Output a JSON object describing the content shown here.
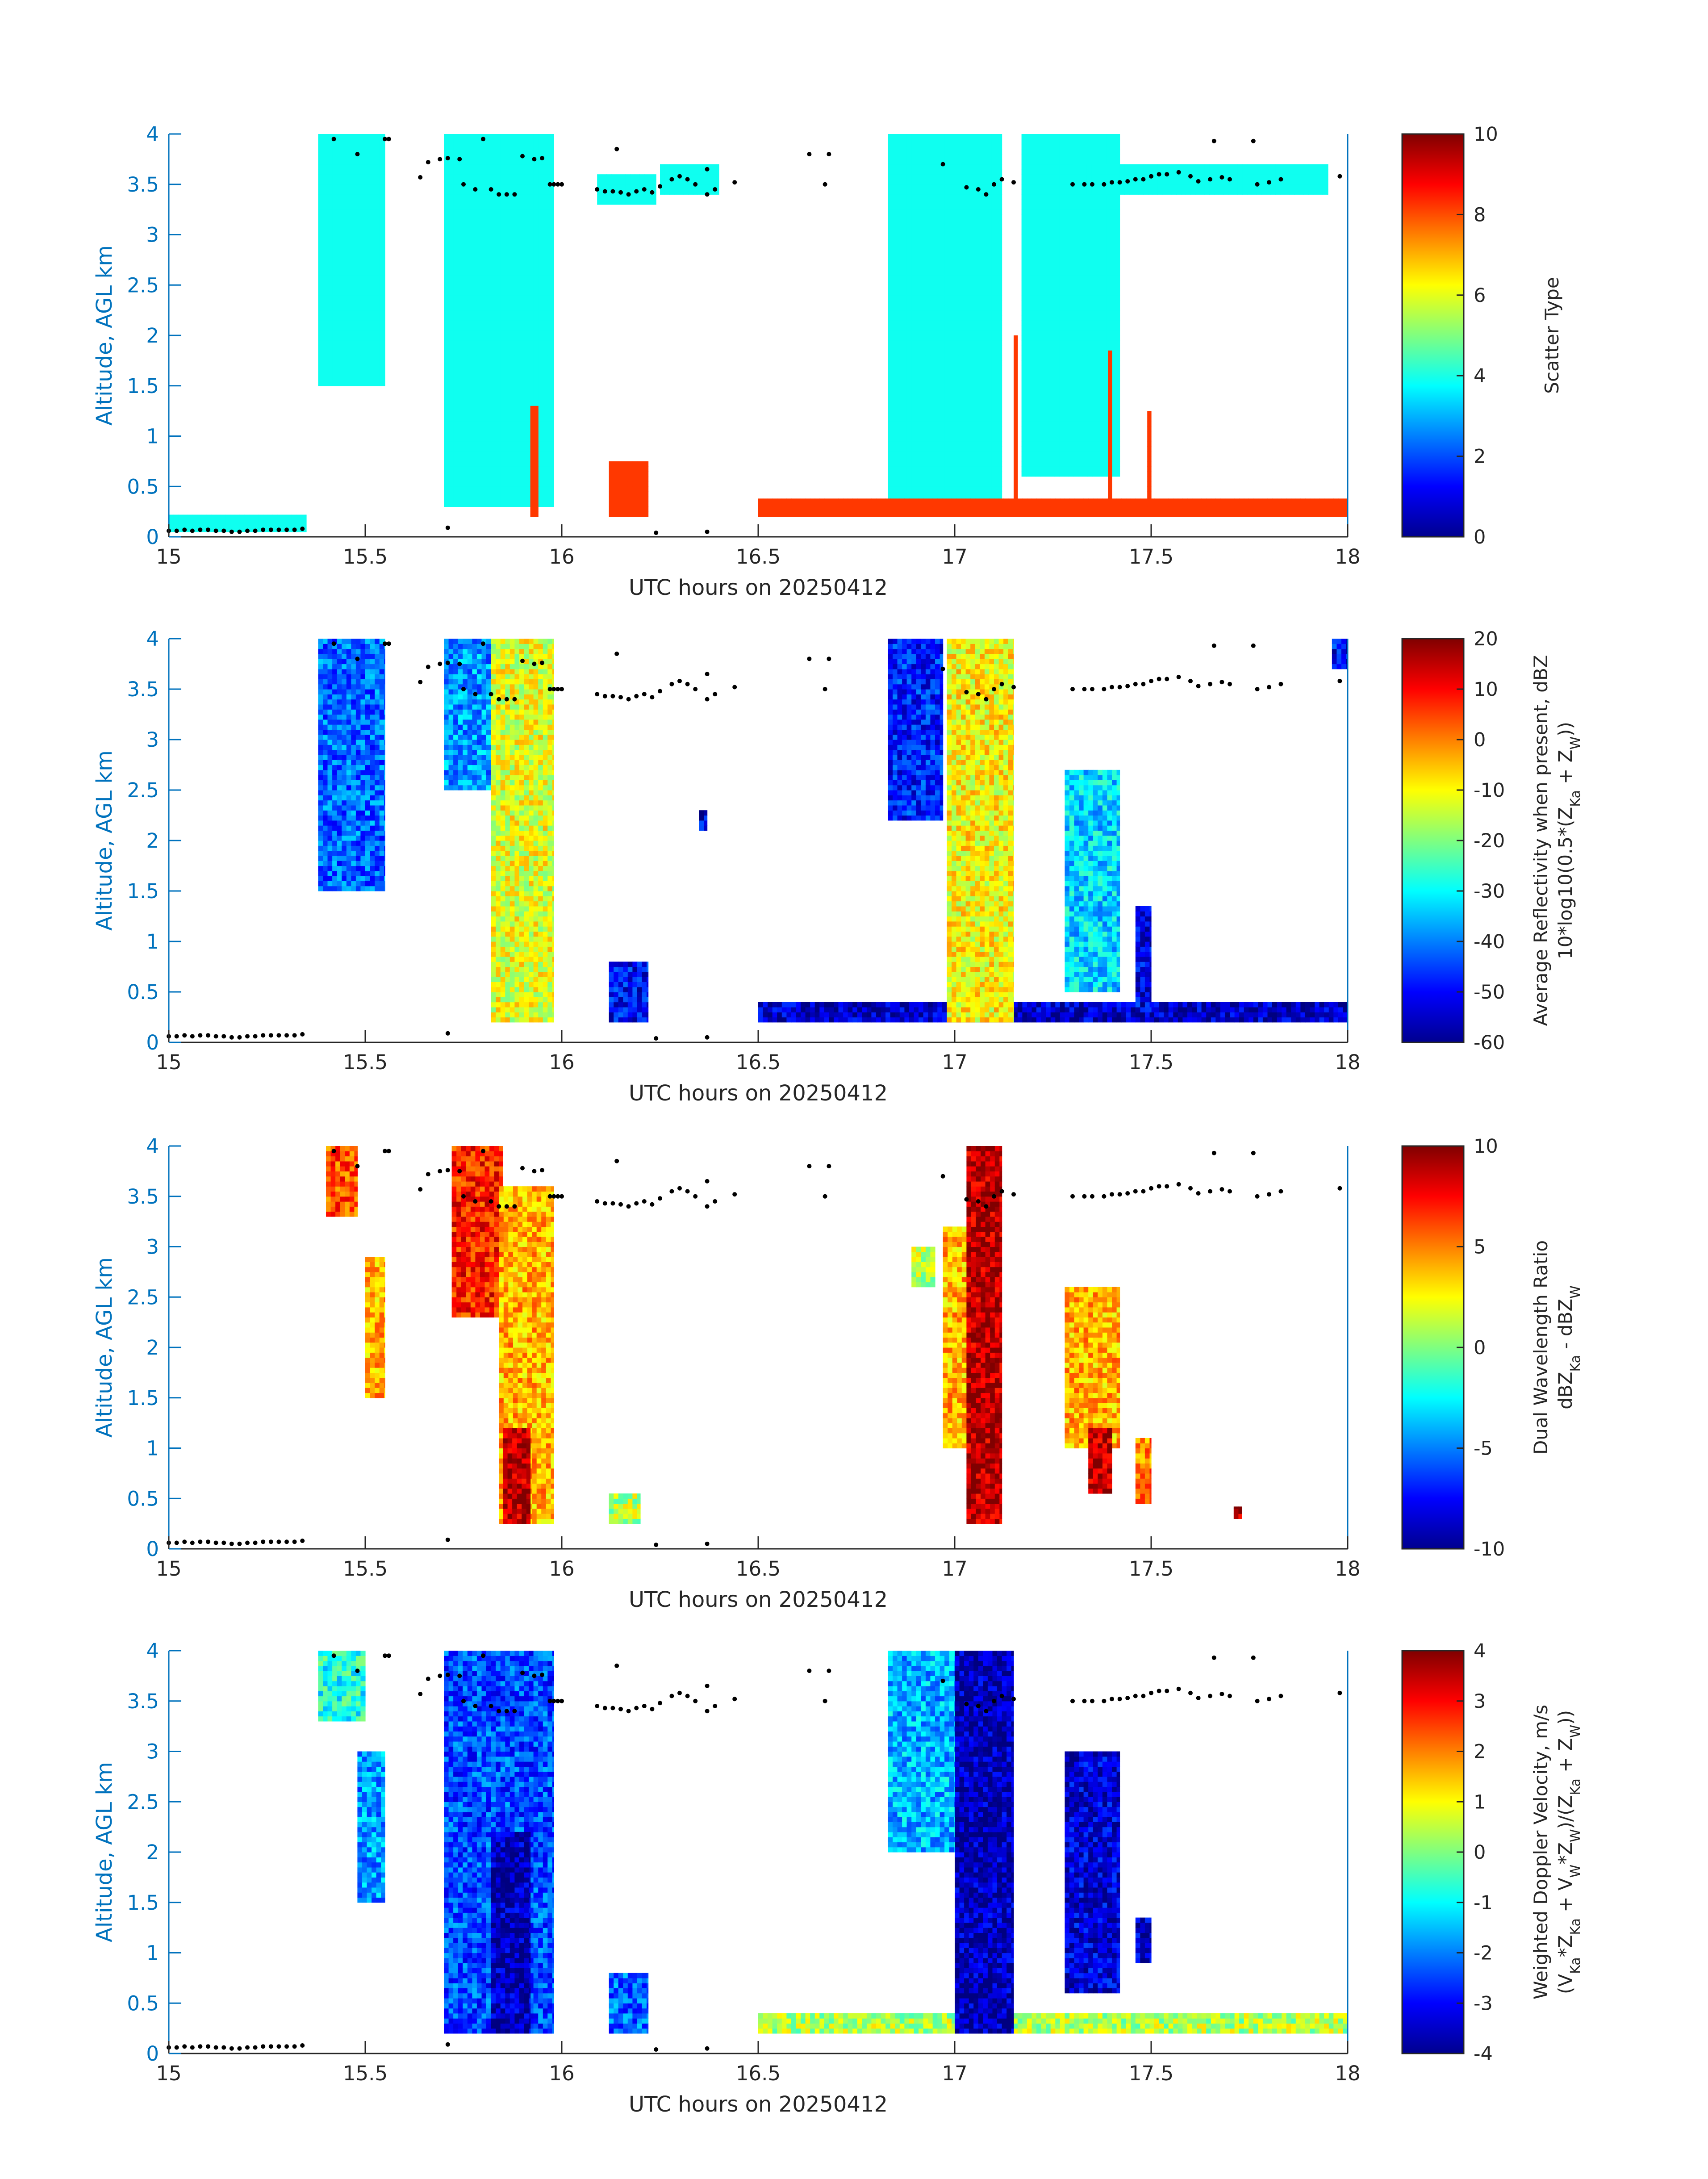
{
  "figure": {
    "xlabel": "UTC hours on 20250412",
    "ylabel": "Altitude, AGL km",
    "xticks": [
      "15",
      "15.5",
      "16",
      "16.5",
      "17",
      "17.5",
      "18"
    ],
    "yticks": [
      "0",
      "0.5",
      "1",
      "1.5",
      "2",
      "2.5",
      "3",
      "3.5",
      "4"
    ],
    "colors": {
      "axis": "#0072BD",
      "text": "#262626",
      "dots": "#000000"
    }
  },
  "chart_data": [
    {
      "type": "heatmap",
      "title": "",
      "xlabel": "UTC hours on 20250412",
      "ylabel": "Altitude, AGL km",
      "xlim": [
        15,
        18
      ],
      "ylim": [
        0,
        4
      ],
      "colorbar": {
        "label": "Scatter Type",
        "label2": "",
        "range": [
          0,
          10
        ],
        "ticks": [
          "0",
          "2",
          "4",
          "6",
          "8",
          "10"
        ]
      },
      "regions": [
        {
          "x": [
            15.0,
            15.35
          ],
          "y": [
            0.05,
            0.22
          ],
          "value": 3.9
        },
        {
          "x": [
            15.38,
            15.55
          ],
          "y": [
            1.5,
            4.0
          ],
          "value": 3.9
        },
        {
          "x": [
            15.7,
            15.98
          ],
          "y": [
            0.3,
            4.0
          ],
          "value": 3.9
        },
        {
          "x": [
            16.09,
            16.24
          ],
          "y": [
            3.3,
            3.6
          ],
          "value": 3.9
        },
        {
          "x": [
            16.25,
            16.4
          ],
          "y": [
            3.4,
            3.7
          ],
          "value": 3.9
        },
        {
          "x": [
            16.83,
            17.12
          ],
          "y": [
            0.2,
            4.0
          ],
          "value": 3.9
        },
        {
          "x": [
            17.17,
            17.42
          ],
          "y": [
            0.6,
            4.0
          ],
          "value": 3.9
        },
        {
          "x": [
            17.3,
            17.95
          ],
          "y": [
            3.4,
            3.7
          ],
          "value": 3.9
        },
        {
          "x": [
            15.92,
            15.94
          ],
          "y": [
            0.2,
            1.3
          ],
          "value": 8.2
        },
        {
          "x": [
            16.12,
            16.22
          ],
          "y": [
            0.2,
            0.75
          ],
          "value": 8.2
        },
        {
          "x": [
            16.5,
            18.0
          ],
          "y": [
            0.2,
            0.38
          ],
          "value": 8.2
        },
        {
          "x": [
            17.15,
            17.16
          ],
          "y": [
            0.2,
            2.0
          ],
          "value": 8.2
        },
        {
          "x": [
            17.39,
            17.4
          ],
          "y": [
            0.2,
            1.85
          ],
          "value": 8.2
        },
        {
          "x": [
            17.49,
            17.5
          ],
          "y": [
            0.2,
            1.25
          ],
          "value": 8.2
        }
      ]
    },
    {
      "type": "heatmap",
      "title": "",
      "xlabel": "UTC hours on 20250412",
      "ylabel": "Altitude, AGL km",
      "xlim": [
        15,
        18
      ],
      "ylim": [
        0,
        4
      ],
      "colorbar": {
        "label": "Average Reflectivity when present, dBZ",
        "label2": "10*log10(0.5*(Z",
        "label2_sub1": "Ka",
        "label2_mid": " + Z",
        "label2_sub2": "W",
        "label2_end": "))",
        "range": [
          -60,
          20
        ],
        "ticks": [
          "-60",
          "-50",
          "-40",
          "-30",
          "-20",
          "-10",
          "0",
          "10",
          "20"
        ]
      },
      "regions": [
        {
          "x": [
            15.38,
            15.55
          ],
          "y": [
            1.5,
            4.0
          ],
          "value": -42
        },
        {
          "x": [
            15.7,
            15.82
          ],
          "y": [
            2.5,
            4.0
          ],
          "value": -38
        },
        {
          "x": [
            15.82,
            15.98
          ],
          "y": [
            0.2,
            4.0
          ],
          "value": -12
        },
        {
          "x": [
            16.12,
            16.22
          ],
          "y": [
            0.2,
            0.8
          ],
          "value": -50
        },
        {
          "x": [
            16.35,
            16.37
          ],
          "y": [
            2.1,
            2.3
          ],
          "value": -52
        },
        {
          "x": [
            16.5,
            18.0
          ],
          "y": [
            0.2,
            0.4
          ],
          "value": -55
        },
        {
          "x": [
            16.83,
            16.97
          ],
          "y": [
            2.2,
            4.0
          ],
          "value": -48
        },
        {
          "x": [
            16.98,
            17.15
          ],
          "y": [
            0.2,
            4.0
          ],
          "value": -10
        },
        {
          "x": [
            17.28,
            17.42
          ],
          "y": [
            0.5,
            2.7
          ],
          "value": -33
        },
        {
          "x": [
            17.46,
            17.5
          ],
          "y": [
            0.3,
            1.35
          ],
          "value": -52
        },
        {
          "x": [
            17.96,
            18.0
          ],
          "y": [
            3.7,
            4.0
          ],
          "value": -50
        }
      ]
    },
    {
      "type": "heatmap",
      "title": "",
      "xlabel": "UTC hours on 20250412",
      "ylabel": "Altitude, AGL km",
      "xlim": [
        15,
        18
      ],
      "ylim": [
        0,
        4
      ],
      "colorbar": {
        "label": "Dual Wavelength Ratio",
        "label2": "dBZ",
        "label2_sub1": "Ka",
        "label2_mid": " - dBZ",
        "label2_sub2": "W",
        "label2_end": "",
        "range": [
          -10,
          10
        ],
        "ticks": [
          "-10",
          "-5",
          "0",
          "5",
          "10"
        ]
      },
      "regions": [
        {
          "x": [
            15.4,
            15.48
          ],
          "y": [
            3.3,
            4.0
          ],
          "value": 6
        },
        {
          "x": [
            15.5,
            15.55
          ],
          "y": [
            1.5,
            2.9
          ],
          "value": 4
        },
        {
          "x": [
            15.72,
            15.85
          ],
          "y": [
            2.3,
            4.0
          ],
          "value": 7
        },
        {
          "x": [
            15.84,
            15.98
          ],
          "y": [
            0.25,
            3.6
          ],
          "value": 4
        },
        {
          "x": [
            15.85,
            15.92
          ],
          "y": [
            0.25,
            1.2
          ],
          "value": 9
        },
        {
          "x": [
            16.12,
            16.2
          ],
          "y": [
            0.25,
            0.55
          ],
          "value": 1
        },
        {
          "x": [
            16.89,
            16.95
          ],
          "y": [
            2.6,
            3.0
          ],
          "value": 1
        },
        {
          "x": [
            16.97,
            17.03
          ],
          "y": [
            1.0,
            3.2
          ],
          "value": 4
        },
        {
          "x": [
            17.03,
            17.12
          ],
          "y": [
            0.25,
            4.0
          ],
          "value": 9
        },
        {
          "x": [
            17.28,
            17.42
          ],
          "y": [
            1.0,
            2.6
          ],
          "value": 4
        },
        {
          "x": [
            17.34,
            17.4
          ],
          "y": [
            0.55,
            1.2
          ],
          "value": 9
        },
        {
          "x": [
            17.46,
            17.5
          ],
          "y": [
            0.45,
            1.1
          ],
          "value": 5
        },
        {
          "x": [
            17.71,
            17.73
          ],
          "y": [
            0.3,
            0.42
          ],
          "value": 9
        }
      ]
    },
    {
      "type": "heatmap",
      "title": "",
      "xlabel": "UTC hours on 20250412",
      "ylabel": "Altitude, AGL km",
      "xlim": [
        15,
        18
      ],
      "ylim": [
        0,
        4
      ],
      "colorbar": {
        "label": "Weighted Doppler Velocity, m/s",
        "label2": "(V",
        "label2_sub1": "Ka",
        "label2_mid": "*Z",
        "label2_sub2": "Ka",
        "label2_end": " + V",
        "label2_sub3": "W",
        "label2_end2": "*Z",
        "label2_sub4": "W",
        "label2_end3": ")/(Z",
        "label2_sub5": "Ka",
        "label2_end4": " + Z",
        "label2_sub6": "W",
        "label2_end5": "))",
        "range": [
          -4,
          4
        ],
        "ticks": [
          "-4",
          "-3",
          "-2",
          "-1",
          "0",
          "1",
          "2",
          "3",
          "4"
        ]
      },
      "regions": [
        {
          "x": [
            15.38,
            15.5
          ],
          "y": [
            3.3,
            4.0
          ],
          "value": -0.8
        },
        {
          "x": [
            15.48,
            15.55
          ],
          "y": [
            1.5,
            3.0
          ],
          "value": -1.8
        },
        {
          "x": [
            15.7,
            15.98
          ],
          "y": [
            0.2,
            4.0
          ],
          "value": -2.4
        },
        {
          "x": [
            15.82,
            15.92
          ],
          "y": [
            0.2,
            2.2
          ],
          "value": -3.6
        },
        {
          "x": [
            16.12,
            16.22
          ],
          "y": [
            0.2,
            0.8
          ],
          "value": -2.2
        },
        {
          "x": [
            16.5,
            18.0
          ],
          "y": [
            0.2,
            0.4
          ],
          "value": 0.4
        },
        {
          "x": [
            16.83,
            17.0
          ],
          "y": [
            2.0,
            4.0
          ],
          "value": -1.6
        },
        {
          "x": [
            17.0,
            17.15
          ],
          "y": [
            0.2,
            4.0
          ],
          "value": -3.6
        },
        {
          "x": [
            17.28,
            17.42
          ],
          "y": [
            0.6,
            3.0
          ],
          "value": -3.3
        },
        {
          "x": [
            17.46,
            17.5
          ],
          "y": [
            0.9,
            1.35
          ],
          "value": -3.4
        }
      ]
    }
  ],
  "dots": [
    [
      15.0,
      0.06
    ],
    [
      15.02,
      0.06
    ],
    [
      15.04,
      0.07
    ],
    [
      15.06,
      0.06
    ],
    [
      15.08,
      0.07
    ],
    [
      15.1,
      0.07
    ],
    [
      15.12,
      0.06
    ],
    [
      15.14,
      0.06
    ],
    [
      15.16,
      0.05
    ],
    [
      15.18,
      0.05
    ],
    [
      15.2,
      0.06
    ],
    [
      15.22,
      0.06
    ],
    [
      15.24,
      0.07
    ],
    [
      15.26,
      0.07
    ],
    [
      15.28,
      0.07
    ],
    [
      15.3,
      0.07
    ],
    [
      15.32,
      0.07
    ],
    [
      15.34,
      0.08
    ],
    [
      15.42,
      3.95
    ],
    [
      15.48,
      3.8
    ],
    [
      15.55,
      3.95
    ],
    [
      15.56,
      3.95
    ],
    [
      15.64,
      3.57
    ],
    [
      15.66,
      3.72
    ],
    [
      15.69,
      3.75
    ],
    [
      15.71,
      3.76
    ],
    [
      15.71,
      0.09
    ],
    [
      15.74,
      3.75
    ],
    [
      15.75,
      3.5
    ],
    [
      15.78,
      3.45
    ],
    [
      15.8,
      3.95
    ],
    [
      15.82,
      3.45
    ],
    [
      15.84,
      3.4
    ],
    [
      15.86,
      3.4
    ],
    [
      15.88,
      3.4
    ],
    [
      15.9,
      3.78
    ],
    [
      15.93,
      3.75
    ],
    [
      15.95,
      3.76
    ],
    [
      15.97,
      3.5
    ],
    [
      15.98,
      3.5
    ],
    [
      15.99,
      3.5
    ],
    [
      16.0,
      3.5
    ],
    [
      16.09,
      3.45
    ],
    [
      16.11,
      3.43
    ],
    [
      16.13,
      3.43
    ],
    [
      16.15,
      3.42
    ],
    [
      16.17,
      3.4
    ],
    [
      16.19,
      3.43
    ],
    [
      16.21,
      3.45
    ],
    [
      16.23,
      3.42
    ],
    [
      16.25,
      3.48
    ],
    [
      16.24,
      0.04
    ],
    [
      16.28,
      3.55
    ],
    [
      16.3,
      3.58
    ],
    [
      16.32,
      3.55
    ],
    [
      16.34,
      3.5
    ],
    [
      16.37,
      3.65
    ],
    [
      16.37,
      3.4
    ],
    [
      16.39,
      3.45
    ],
    [
      16.37,
      0.05
    ],
    [
      16.14,
      3.85
    ],
    [
      16.44,
      3.52
    ],
    [
      16.63,
      3.8
    ],
    [
      16.68,
      3.8
    ],
    [
      16.67,
      3.5
    ],
    [
      16.97,
      3.7
    ],
    [
      17.03,
      3.47
    ],
    [
      17.06,
      3.45
    ],
    [
      17.08,
      3.4
    ],
    [
      17.1,
      3.5
    ],
    [
      17.12,
      3.55
    ],
    [
      17.15,
      3.52
    ],
    [
      17.3,
      3.5
    ],
    [
      17.33,
      3.5
    ],
    [
      17.35,
      3.5
    ],
    [
      17.38,
      3.5
    ],
    [
      17.4,
      3.52
    ],
    [
      17.42,
      3.52
    ],
    [
      17.44,
      3.53
    ],
    [
      17.46,
      3.55
    ],
    [
      17.48,
      3.55
    ],
    [
      17.5,
      3.58
    ],
    [
      17.52,
      3.6
    ],
    [
      17.54,
      3.6
    ],
    [
      17.57,
      3.62
    ],
    [
      17.6,
      3.58
    ],
    [
      17.62,
      3.53
    ],
    [
      17.65,
      3.55
    ],
    [
      17.68,
      3.57
    ],
    [
      17.7,
      3.55
    ],
    [
      17.77,
      3.5
    ],
    [
      17.8,
      3.52
    ],
    [
      17.83,
      3.55
    ],
    [
      17.66,
      3.93
    ],
    [
      17.76,
      3.93
    ],
    [
      17.98,
      3.58
    ]
  ]
}
